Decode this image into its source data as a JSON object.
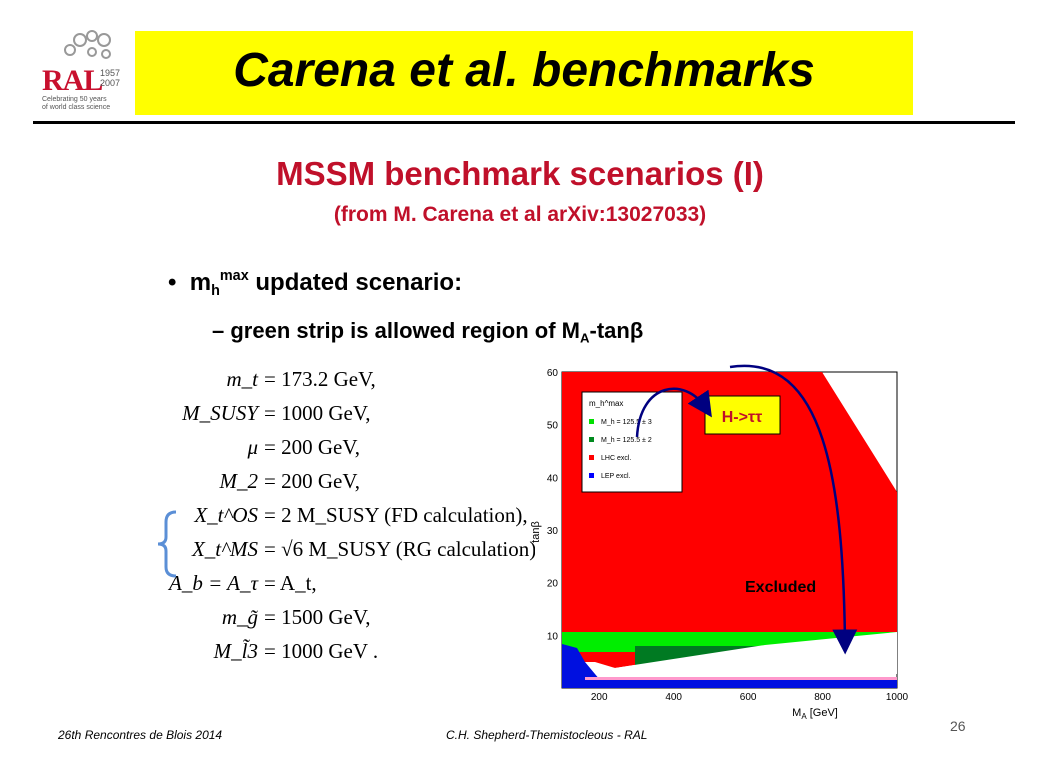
{
  "logo": {
    "text": "RAL",
    "years": [
      "1957",
      "2007"
    ],
    "tagline": [
      "Celebrating 50 years",
      "of world class science"
    ]
  },
  "title": "Carena et al. benchmarks",
  "heading": "MSSM benchmark scenarios (I)",
  "subheading": "(from M. Carena et al arXiv:13027033)",
  "bullets": {
    "main_prefix": "m",
    "main_sub": "h",
    "main_sup": "max",
    "main_rest": " updated scenario:",
    "sub_dash": "– ",
    "sub_text": "green strip is allowed region of M",
    "sub_sub": "A",
    "sub_tail": "-tan",
    "sub_symbol": "β"
  },
  "equations": [
    {
      "lhs": "m_t",
      "rhs": "= 173.2 GeV,"
    },
    {
      "lhs": "M_SUSY",
      "rhs": "= 1000 GeV,"
    },
    {
      "lhs": "μ",
      "rhs": "= 200 GeV,"
    },
    {
      "lhs": "M_2",
      "rhs": "= 200 GeV,"
    },
    {
      "lhs": "X_t^OS",
      "rhs": "= 2 M_SUSY  (FD calculation),"
    },
    {
      "lhs": "X_t^MS",
      "rhs": "= √6 M_SUSY  (RG calculation),"
    },
    {
      "lhs": "A_b = A_τ",
      "rhs": "= A_t,"
    },
    {
      "lhs": "m_g̃",
      "rhs": "= 1500 GeV,"
    },
    {
      "lhs": "M_l̃3",
      "rhs": "= 1000 GeV ."
    }
  ],
  "plot": {
    "xlabel": "M_A [GeV]",
    "ylabel": "tanβ",
    "x_ticks": [
      "200",
      "400",
      "600",
      "800",
      "1000"
    ],
    "y_ticks": [
      "10",
      "20",
      "30",
      "40",
      "50",
      "60"
    ],
    "legend_title": "m_h^max",
    "legend": [
      {
        "label": "M_h = 125.5 ± 3",
        "color": "#00e000"
      },
      {
        "label": "M_h = 125.5 ± 2",
        "color": "#008a1e"
      },
      {
        "label": "LHC excl.",
        "color": "#ff0000"
      },
      {
        "label": "LEP excl.",
        "color": "#0000ff"
      }
    ],
    "box_label": "H->ττ",
    "excluded_label": "Excluded",
    "colors": {
      "lhc": "#ff0000",
      "lep": "#0010e0",
      "green_light": "#00ee00",
      "green_dark": "#007a22",
      "arrow": "#000080",
      "box": "#ffff00"
    }
  },
  "footer": {
    "left": "26th Rencontres de Blois 2014",
    "center": "C.H. Shepherd-Themistocleous  - RAL",
    "page": "26"
  }
}
